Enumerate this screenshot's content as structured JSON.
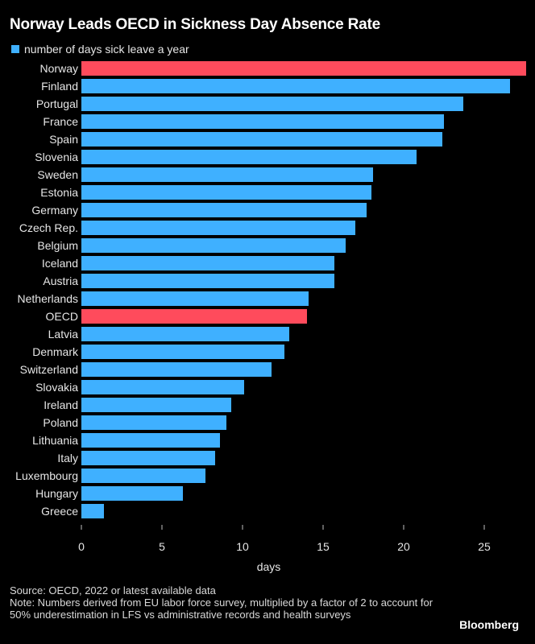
{
  "title": "Norway Leads OECD in Sickness Day Absence Rate",
  "legend": {
    "label": "number of days sick leave a year",
    "color": "#3fb0ff"
  },
  "colors": {
    "default_bar": "#3fb0ff",
    "highlight_bar": "#ff4b5c",
    "grid": "#4d4d4d"
  },
  "chart_data": {
    "type": "bar",
    "orientation": "horizontal",
    "title": "Norway Leads OECD in Sickness Day Absence Rate",
    "xlabel": "days",
    "ylabel": "",
    "xlim": [
      0,
      27.5
    ],
    "xticks": [
      0,
      5,
      10,
      15,
      20,
      25
    ],
    "grid": false,
    "legend": "top-left",
    "categories": [
      "Norway",
      "Finland",
      "Portugal",
      "France",
      "Spain",
      "Slovenia",
      "Sweden",
      "Estonia",
      "Germany",
      "Czech Rep.",
      "Belgium",
      "Iceland",
      "Austria",
      "Netherlands",
      "OECD",
      "Latvia",
      "Denmark",
      "Switzerland",
      "Slovakia",
      "Ireland",
      "Poland",
      "Lithuania",
      "Italy",
      "Luxembourg",
      "Hungary",
      "Greece"
    ],
    "values": [
      27.6,
      26.6,
      23.7,
      22.5,
      22.4,
      20.8,
      18.1,
      18.0,
      17.7,
      17.0,
      16.4,
      15.7,
      15.7,
      14.1,
      14.0,
      12.9,
      12.6,
      11.8,
      10.1,
      9.3,
      9.0,
      8.6,
      8.3,
      7.7,
      6.3,
      1.4
    ],
    "highlighted": [
      "Norway",
      "OECD"
    ],
    "series": [
      {
        "name": "number of days sick leave a year"
      }
    ]
  },
  "footer": {
    "source": "Source: OECD, 2022 or latest available data",
    "note": "Note: Numbers derived from EU labor force survey, multiplied by a factor of 2 to account for 50% underestimation in LFS vs administrative records and health surveys"
  },
  "brand": "Bloomberg"
}
